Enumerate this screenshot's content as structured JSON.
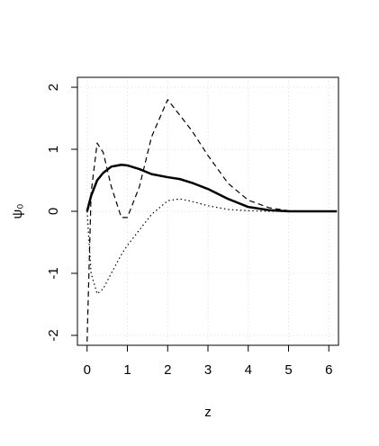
{
  "chart_data": {
    "type": "line",
    "xlabel": "z",
    "ylabel": "ψ₀",
    "x": [
      0,
      0.1,
      0.25,
      0.4,
      0.6,
      0.85,
      1.0,
      1.3,
      1.6,
      2.0,
      2.3,
      2.6,
      3.0,
      3.5,
      4.0,
      4.5,
      5.0,
      5.5,
      6.2
    ],
    "series": [
      {
        "color": "#000000",
        "linestyle": "solid",
        "linewidth": 2.5,
        "values": [
          0,
          0.25,
          0.5,
          0.62,
          0.72,
          0.75,
          0.74,
          0.68,
          0.6,
          0.55,
          0.52,
          0.46,
          0.36,
          0.2,
          0.07,
          0.02,
          0,
          0,
          0
        ]
      },
      {
        "color": "#000000",
        "linestyle": "dashed",
        "linewidth": 1.2,
        "values": [
          -2.1,
          0.3,
          1.1,
          0.95,
          0.4,
          -0.1,
          -0.1,
          0.4,
          1.2,
          1.8,
          1.55,
          1.3,
          0.9,
          0.45,
          0.18,
          0.06,
          0.01,
          0,
          0
        ]
      },
      {
        "color": "#000000",
        "linestyle": "dotted",
        "linewidth": 1.2,
        "values": [
          0,
          -1.0,
          -1.33,
          -1.25,
          -1.0,
          -0.7,
          -0.55,
          -0.3,
          -0.05,
          0.17,
          0.2,
          0.16,
          0.09,
          0.03,
          0.01,
          0,
          0,
          0,
          0
        ]
      }
    ],
    "xlim": [
      -0.24,
      6.24
    ],
    "ylim": [
      -2.16,
      2.16
    ],
    "xticks": [
      0,
      1,
      2,
      3,
      4,
      5,
      6
    ],
    "yticks": [
      -2,
      -1,
      0,
      1,
      2
    ],
    "grid": true
  }
}
